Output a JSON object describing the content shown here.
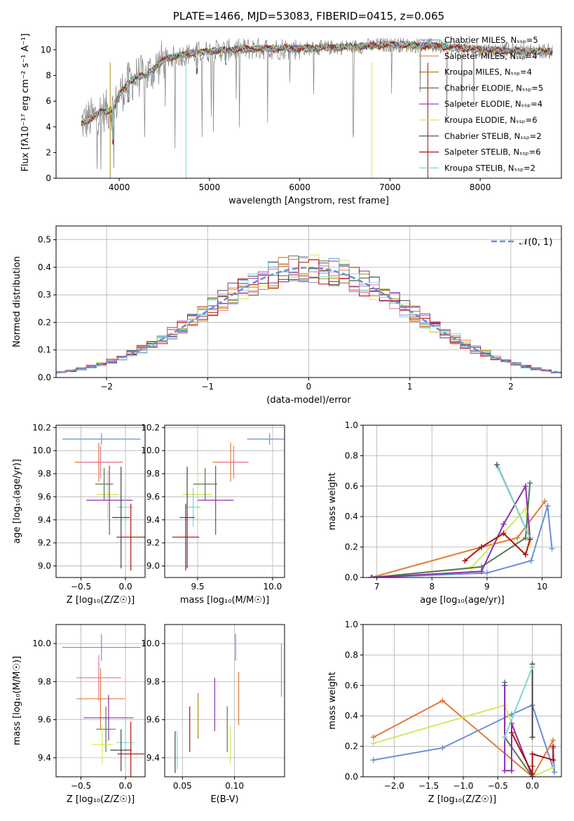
{
  "chart_data": [
    {
      "id": "spectrum",
      "type": "line",
      "title": "PLATE=1466, MJD=53083, FIBERID=0415, z=0.065",
      "xlabel": "wavelength [Angstrom, rest frame]",
      "ylabel": "Flux [fλ10⁻¹⁷ erg cm⁻² s⁻¹ A⁻¹]",
      "xlim": [
        3300,
        8900
      ],
      "ylim": [
        0,
        11.8
      ],
      "xticks": [
        4000,
        5000,
        6000,
        7000,
        8000
      ],
      "yticks": [
        0,
        2,
        4,
        6,
        8,
        10
      ],
      "legend_position": "right",
      "series": [
        {
          "name": "Chabrier MILES, Nₛₛₚ=5",
          "color": "#6a8fd6"
        },
        {
          "name": "Salpeter MILES, Nₛₛₚ=4",
          "color": "#e07b39"
        },
        {
          "name": "Kroupa MILES, Nₛₛₚ=4",
          "color": "#b8860b"
        },
        {
          "name": "Chabrier ELODIE, Nₛₛₚ=5",
          "color": "#4f7a56"
        },
        {
          "name": "Salpeter ELODIE, Nₛₛₚ=4",
          "color": "#8e2fb0"
        },
        {
          "name": "Kroupa ELODIE, Nₛₛₚ=6",
          "color": "#d4e85a"
        },
        {
          "name": "Chabrier STELIB, Nₛₛₚ=2",
          "color": "#444444"
        },
        {
          "name": "Salpeter STELIB, Nₛₛₚ=6",
          "color": "#b01010"
        },
        {
          "name": "Kroupa STELIB, Nₛₛₚ=2",
          "color": "#7fd6d8"
        }
      ],
      "data_color": "#808080",
      "continuum": [
        [
          3580,
          4.3
        ],
        [
          3700,
          4.7
        ],
        [
          3800,
          5.2
        ],
        [
          3900,
          5.3
        ],
        [
          3950,
          5.5
        ],
        [
          4000,
          6.5
        ],
        [
          4100,
          7.4
        ],
        [
          4200,
          7.9
        ],
        [
          4300,
          8.0
        ],
        [
          4400,
          8.6
        ],
        [
          4500,
          9.3
        ],
        [
          4700,
          9.6
        ],
        [
          5000,
          9.9
        ],
        [
          5500,
          10.1
        ],
        [
          6000,
          10.1
        ],
        [
          6500,
          10.2
        ],
        [
          7000,
          10.4
        ],
        [
          7500,
          10.3
        ],
        [
          8000,
          10.0
        ],
        [
          8500,
          9.9
        ],
        [
          8800,
          9.9
        ]
      ]
    },
    {
      "id": "residuals",
      "type": "histogram",
      "xlabel": "(data-model)/error",
      "ylabel": "Normed distribution",
      "xlim": [
        -2.5,
        2.5
      ],
      "ylim": [
        0,
        0.55
      ],
      "xticks": [
        -2,
        -1,
        0,
        1,
        2
      ],
      "yticks": [
        0.0,
        0.1,
        0.2,
        0.3,
        0.4,
        0.5
      ],
      "grid": true,
      "legend": "𝒩(0, 1)",
      "legend_position": "top-right"
    },
    {
      "id": "age-vs-Z",
      "type": "errorbar",
      "xlabel": "Z [log₁₀(Z/Z☉)]",
      "ylabel": "age  [log₁₀(age/yr)]",
      "xlim": [
        -0.78,
        0.22
      ],
      "ylim": [
        8.9,
        10.22
      ],
      "xticks": [
        -0.5,
        0.0
      ],
      "yticks": [
        9.0,
        9.2,
        9.4,
        9.6,
        9.8,
        10.0,
        10.2
      ],
      "grid": true,
      "points": [
        {
          "x": -0.27,
          "xerr": 0.44,
          "y": 10.1,
          "yerr": 0.05,
          "color": "#6a8fd6"
        },
        {
          "x": -0.3,
          "xerr": 0.27,
          "y": 9.9,
          "yerr": 0.17,
          "color": "#e07b39"
        },
        {
          "x": -0.28,
          "xerr": 0.23,
          "y": 9.9,
          "yerr": 0.14,
          "color": "#e8749a"
        },
        {
          "x": -0.2,
          "xerr": 0.12,
          "y": 9.62,
          "yerr": 0.21,
          "color": "#d4e85a"
        },
        {
          "x": -0.24,
          "xerr": 0.1,
          "y": 9.71,
          "yerr": 0.14,
          "color": "#4f7a56"
        },
        {
          "x": -0.18,
          "xerr": 0.26,
          "y": 9.57,
          "yerr": 0.3,
          "color": "#8e2fb0"
        },
        {
          "x": 0.0,
          "xerr": 0.09,
          "y": 9.51,
          "yerr": 0.17,
          "color": "#7fd6d8"
        },
        {
          "x": -0.05,
          "xerr": 0.1,
          "y": 9.42,
          "yerr": 0.44,
          "color": "#444444"
        },
        {
          "x": 0.06,
          "xerr": 0.16,
          "y": 9.25,
          "yerr": 0.29,
          "color": "#b01010"
        }
      ]
    },
    {
      "id": "age-vs-mass",
      "type": "errorbar",
      "xlabel": "mass [log₁₀(M/M☉)]",
      "ylabel": "",
      "xlim": [
        9.28,
        10.08
      ],
      "ylim": [
        8.9,
        10.22
      ],
      "xticks": [
        9.5,
        10.0
      ],
      "yticks": [
        9.0,
        9.2,
        9.4,
        9.6,
        9.8,
        10.0,
        10.2
      ],
      "grid": true,
      "points": [
        {
          "x": 9.98,
          "xerr": 0.15,
          "y": 10.1,
          "yerr": 0.05,
          "color": "#6a8fd6"
        },
        {
          "x": 9.72,
          "xerr": 0.12,
          "y": 9.9,
          "yerr": 0.17,
          "color": "#e07b39"
        },
        {
          "x": 9.74,
          "xerr": 0.1,
          "y": 9.9,
          "yerr": 0.14,
          "color": "#e8749a"
        },
        {
          "x": 9.5,
          "xerr": 0.1,
          "y": 9.62,
          "yerr": 0.21,
          "color": "#d4e85a"
        },
        {
          "x": 9.55,
          "xerr": 0.08,
          "y": 9.71,
          "yerr": 0.14,
          "color": "#4f7a56"
        },
        {
          "x": 9.62,
          "xerr": 0.12,
          "y": 9.57,
          "yerr": 0.3,
          "color": "#8e2fb0"
        },
        {
          "x": 9.47,
          "xerr": 0.05,
          "y": 9.51,
          "yerr": 0.17,
          "color": "#7fd6d8"
        },
        {
          "x": 9.43,
          "xerr": 0.05,
          "y": 9.42,
          "yerr": 0.44,
          "color": "#444444"
        },
        {
          "x": 9.42,
          "xerr": 0.09,
          "y": 9.25,
          "yerr": 0.29,
          "color": "#b01010"
        }
      ]
    },
    {
      "id": "weight-vs-age",
      "type": "line",
      "xlabel": "age  [log₁₀(age/yr)]",
      "ylabel": "mass weight",
      "xlim": [
        6.75,
        10.35
      ],
      "ylim": [
        0,
        1.0
      ],
      "xticks": [
        7,
        8,
        9,
        10
      ],
      "yticks": [
        0.0,
        0.2,
        0.4,
        0.6,
        0.8,
        1.0
      ],
      "grid": true,
      "series": [
        {
          "color": "#6a8fd6",
          "x": [
            6.92,
            9.0,
            9.8,
            10.1,
            10.18
          ],
          "y": [
            0.0,
            0.03,
            0.11,
            0.47,
            0.19
          ]
        },
        {
          "color": "#e07b39",
          "x": [
            6.9,
            8.9,
            9.55,
            10.05
          ],
          "y": [
            0.0,
            0.2,
            0.26,
            0.5
          ]
        },
        {
          "color": "#d4e85a",
          "x": [
            6.9,
            8.7,
            9.7,
            9.78
          ],
          "y": [
            0.0,
            0.06,
            0.45,
            0.22
          ]
        },
        {
          "color": "#4f7a56",
          "x": [
            6.9,
            8.9,
            9.7,
            9.78
          ],
          "y": [
            0.0,
            0.07,
            0.26,
            0.62
          ]
        },
        {
          "color": "#8e2fb0",
          "x": [
            6.9,
            8.9,
            9.3,
            9.7,
            9.78
          ],
          "y": [
            0.0,
            0.04,
            0.35,
            0.6,
            0.26
          ]
        },
        {
          "color": "#444444",
          "x": [
            9.18,
            9.78
          ],
          "y": [
            0.74,
            0.26
          ]
        },
        {
          "color": "#7fd6d8",
          "x": [
            9.2,
            9.78
          ],
          "y": [
            0.72,
            0.26
          ]
        },
        {
          "color": "#b01010",
          "x": [
            8.6,
            8.9,
            9.3,
            9.7,
            9.78
          ],
          "y": [
            0.11,
            0.2,
            0.29,
            0.15,
            0.25
          ]
        }
      ]
    },
    {
      "id": "mass-vs-Z",
      "type": "errorbar",
      "xlabel": "Z [log₁₀(Z/Z☉)]",
      "ylabel": "mass [log₁₀(M/M☉)]",
      "xlim": [
        -0.78,
        0.22
      ],
      "ylim": [
        9.3,
        10.1
      ],
      "xticks": [
        -0.5,
        0.0
      ],
      "yticks": [
        9.4,
        9.6,
        9.8,
        10.0
      ],
      "grid": true,
      "points": [
        {
          "x": -0.27,
          "xerr": 0.44,
          "y": 9.98,
          "yerr": 0.07,
          "color": "#6a8fd6"
        },
        {
          "x": -0.3,
          "xerr": 0.25,
          "y": 9.82,
          "yerr": 0.12,
          "color": "#e8749a"
        },
        {
          "x": -0.28,
          "xerr": 0.27,
          "y": 9.71,
          "yerr": 0.16,
          "color": "#e07b39"
        },
        {
          "x": -0.19,
          "xerr": 0.28,
          "y": 9.61,
          "yerr": 0.12,
          "color": "#8e2fb0"
        },
        {
          "x": -0.22,
          "xerr": 0.11,
          "y": 9.55,
          "yerr": 0.12,
          "color": "#4f7a56"
        },
        {
          "x": -0.26,
          "xerr": 0.12,
          "y": 9.47,
          "yerr": 0.1,
          "color": "#d4e85a"
        },
        {
          "x": 0.0,
          "xerr": 0.1,
          "y": 9.48,
          "yerr": 0.12,
          "color": "#7fd6d8"
        },
        {
          "x": -0.05,
          "xerr": 0.12,
          "y": 9.44,
          "yerr": 0.11,
          "color": "#444444"
        },
        {
          "x": 0.06,
          "xerr": 0.15,
          "y": 9.42,
          "yerr": 0.17,
          "color": "#b01010"
        }
      ]
    },
    {
      "id": "mass-vs-ebv",
      "type": "errorbar",
      "xlabel": "E(B-V)",
      "ylabel": "",
      "xlim": [
        0.033,
        0.148
      ],
      "ylim": [
        9.3,
        10.1
      ],
      "xticks": [
        0.05,
        0.1
      ],
      "yticks": [
        9.4,
        9.6,
        9.8,
        10.0
      ],
      "grid": true,
      "points": [
        {
          "x": 0.043,
          "y": 9.43,
          "yerr": 0.11,
          "color": "#444444"
        },
        {
          "x": 0.045,
          "y": 9.44,
          "yerr": 0.1,
          "color": "#7fd6d8"
        },
        {
          "x": 0.057,
          "y": 9.55,
          "yerr": 0.12,
          "color": "#b01010"
        },
        {
          "x": 0.065,
          "y": 9.62,
          "yerr": 0.12,
          "color": "#b8860b"
        },
        {
          "x": 0.081,
          "y": 9.68,
          "yerr": 0.14,
          "color": "#8e2fb0"
        },
        {
          "x": 0.093,
          "y": 9.55,
          "yerr": 0.12,
          "color": "#4f7a56"
        },
        {
          "x": 0.096,
          "y": 9.47,
          "yerr": 0.1,
          "color": "#d4e85a"
        },
        {
          "x": 0.101,
          "y": 9.98,
          "yerr": 0.07,
          "color": "#6a8fd6"
        },
        {
          "x": 0.104,
          "y": 9.71,
          "yerr": 0.14,
          "color": "#e07b39"
        },
        {
          "x": 0.145,
          "y": 9.86,
          "yerr": 0.14,
          "color": "#e8749a"
        }
      ]
    },
    {
      "id": "weight-vs-Z",
      "type": "line",
      "xlabel": "Z [log₁₀(Z/Z☉)]",
      "ylabel": "mass weight",
      "xlim": [
        -2.45,
        0.42
      ],
      "ylim": [
        0,
        1.0
      ],
      "xticks": [
        -2.0,
        -1.5,
        -1.0,
        -0.5,
        0.0
      ],
      "yticks": [
        0.0,
        0.2,
        0.4,
        0.6,
        0.8,
        1.0
      ],
      "grid": true,
      "series": [
        {
          "color": "#6a8fd6",
          "x": [
            -2.3,
            -1.3,
            -0.3,
            0.0,
            0.32,
            0.3
          ],
          "y": [
            0.11,
            0.19,
            0.41,
            0.47,
            0.03,
            0.19
          ]
        },
        {
          "color": "#e07b39",
          "x": [
            -2.3,
            -1.3,
            0.0,
            0.3
          ],
          "y": [
            0.26,
            0.5,
            0.0,
            0.24
          ]
        },
        {
          "color": "#d4e85a",
          "x": [
            -2.3,
            -0.4,
            0.0,
            0.3
          ],
          "y": [
            0.22,
            0.47,
            0.0,
            0.06
          ]
        },
        {
          "color": "#4f7a56",
          "x": [
            -0.4,
            -0.4,
            0.0,
            0.0
          ],
          "y": [
            0.62,
            0.26,
            0.0,
            0.07
          ]
        },
        {
          "color": "#8e2fb0",
          "x": [
            -0.4,
            -0.4,
            -0.3,
            -0.3,
            0.0
          ],
          "y": [
            0.6,
            0.04,
            0.04,
            0.35,
            0.0
          ]
        },
        {
          "color": "#444444",
          "x": [
            0.0,
            0.0
          ],
          "y": [
            0.74,
            0.26
          ]
        },
        {
          "color": "#7fd6d8",
          "x": [
            -0.4,
            0.0
          ],
          "y": [
            0.26,
            0.72
          ]
        },
        {
          "color": "#b01010",
          "x": [
            -0.3,
            0.0,
            0.0,
            0.3,
            0.3
          ],
          "y": [
            0.29,
            0.02,
            0.15,
            0.11,
            0.2
          ]
        }
      ]
    }
  ]
}
